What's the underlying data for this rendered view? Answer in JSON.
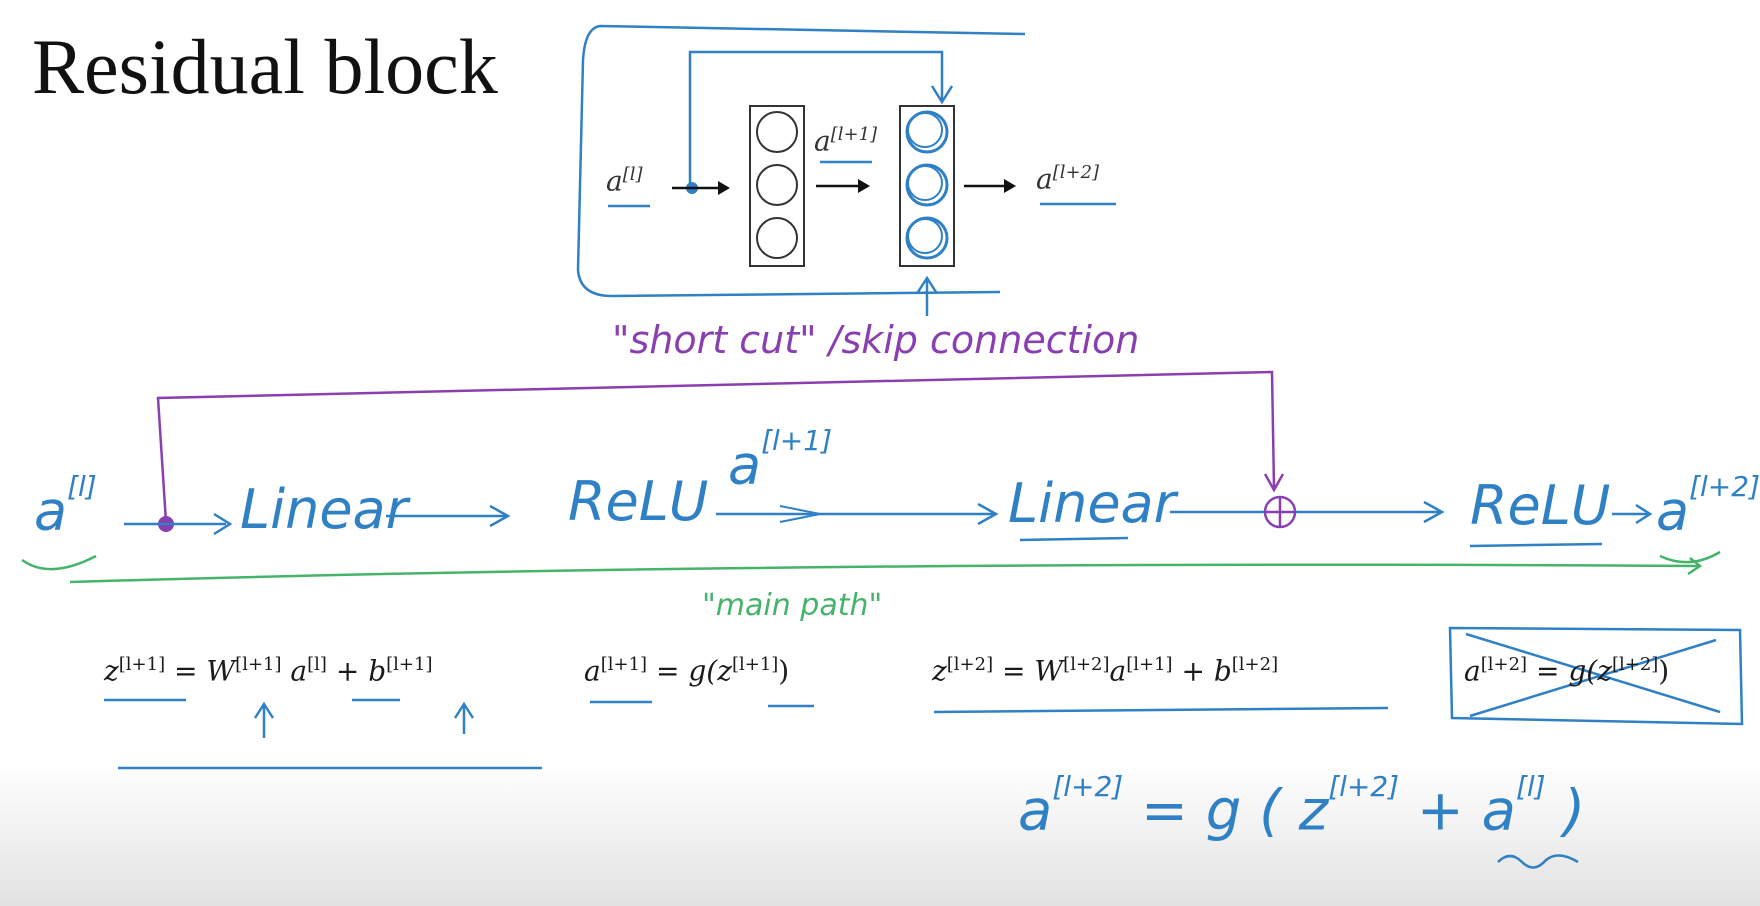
{
  "title": "Residual block",
  "top_diagram": {
    "input_label": "a",
    "input_sup": "[l]",
    "mid_label": "a",
    "mid_sup": "[l+1]",
    "output_label": "a",
    "output_sup": "[l+2]"
  },
  "skip_label": "\"short cut\" /skip connection",
  "main_path_label": "\"main path\"",
  "flow": {
    "a_in": "a",
    "a_in_sup": "[l]",
    "linear1": "Linear",
    "relu1": "ReLU",
    "a_mid": "a",
    "a_mid_sup": "[l+1]",
    "linear2": "Linear",
    "relu2": "ReLU",
    "a_out": "a",
    "a_out_sup": "[l+2]"
  },
  "equations": {
    "eq1": {
      "lhs": "z",
      "lhs_sup": "[l+1]",
      "eq": "=",
      "w": "W",
      "w_sup": "[l+1]",
      "a": "a",
      "a_sup": "[l]",
      "plus": "+",
      "b": "b",
      "b_sup": "[l+1]"
    },
    "eq2": {
      "lhs": "a",
      "lhs_sup": "[l+1]",
      "eq": "=",
      "g": "g(",
      "z": "z",
      "z_sup": "[l+1]",
      "close": ")"
    },
    "eq3": {
      "lhs": "z",
      "lhs_sup": "[l+2]",
      "eq": "=",
      "w": "W",
      "w_sup": "[l+2]",
      "a": "a",
      "a_sup": "[l+1]",
      "plus": "+",
      "b": "b",
      "b_sup": "[l+2]"
    },
    "eq4": {
      "lhs": "a",
      "lhs_sup": "[l+2]",
      "eq": "=",
      "g": "g(",
      "z": "z",
      "z_sup": "[l+2]",
      "close": ")"
    }
  },
  "handwritten_eq": {
    "lhs": "a",
    "lhs_sup": "[l+2]",
    "eq": "= g (",
    "z": "z",
    "z_sup": "[l+2]",
    "plus": "+",
    "a": "a",
    "a_sup": "[l]",
    "close": ")"
  },
  "colors": {
    "blue_ink": "#2f80c4",
    "purple_ink": "#8a3fb0",
    "green_ink": "#45b36a",
    "text": "#1a1a1a"
  }
}
